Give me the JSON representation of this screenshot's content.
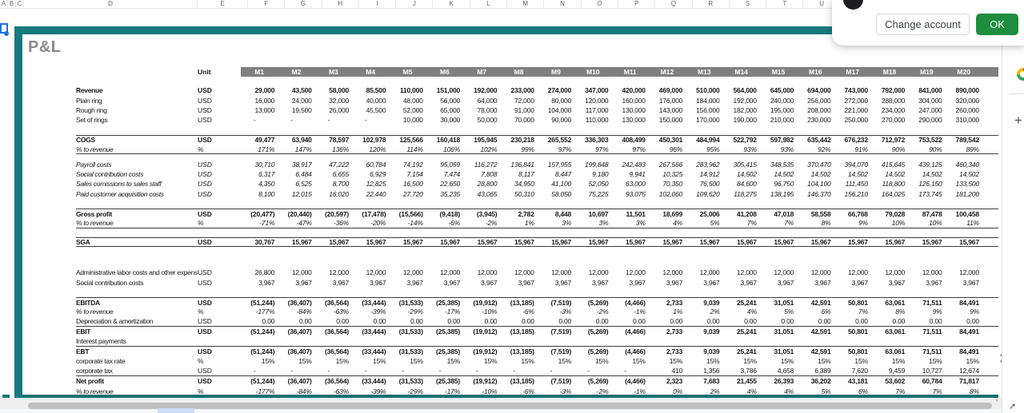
{
  "sheet": {
    "column_letters": [
      "A",
      "B",
      "C",
      "D",
      "E",
      "F",
      "G",
      "H",
      "I",
      "J",
      "K",
      "L",
      "M",
      "N",
      "O",
      "P",
      "Q",
      "R",
      "S",
      "T",
      "U"
    ]
  },
  "dialog": {
    "change_account_label": "Change account",
    "ok_label": "OK"
  },
  "card": {
    "title": "P&L",
    "unit_header": "Unit"
  },
  "colors": {
    "card_border_teal": "#17797d",
    "month_band_gray": "#7f7f7f",
    "ok_button_green": "#1e8e3e",
    "selection_blue": "#1a73e8",
    "sheet_tab_blue": "#cfddf6"
  },
  "table": {
    "months": [
      "M1",
      "M2",
      "M3",
      "M4",
      "M5",
      "M6",
      "M7",
      "M8",
      "M9",
      "M10",
      "M11",
      "M12",
      "M13",
      "M14",
      "M15",
      "M16",
      "M17",
      "M18",
      "M19",
      "M20"
    ],
    "rows": [
      {
        "label": "Revenue",
        "unit": "USD",
        "bold": true,
        "gap": 11,
        "values": [
          "29,000",
          "43,500",
          "58,000",
          "85,500",
          "110,000",
          "151,000",
          "192,000",
          "233,000",
          "274,000",
          "347,000",
          "420,000",
          "469,000",
          "510,000",
          "564,000",
          "645,000",
          "694,000",
          "743,000",
          "792,000",
          "841,000",
          "890,000"
        ]
      },
      {
        "label": "Plain ring",
        "unit": "USD",
        "values": [
          "16,000",
          "24,000",
          "32,000",
          "40,000",
          "48,000",
          "56,000",
          "64,000",
          "72,000",
          "80,000",
          "120,000",
          "160,000",
          "176,000",
          "184,000",
          "192,000",
          "240,000",
          "256,000",
          "272,000",
          "288,000",
          "304,000",
          "320,000"
        ]
      },
      {
        "label": "Rough ring",
        "unit": "USD",
        "values": [
          "13,000",
          "19,500",
          "26,000",
          "45,500",
          "52,000",
          "65,000",
          "78,000",
          "91,000",
          "104,000",
          "117,000",
          "130,000",
          "143,000",
          "156,000",
          "182,000",
          "195,000",
          "208,000",
          "221,000",
          "234,000",
          "247,000",
          "260,000"
        ]
      },
      {
        "label": "Set of rings",
        "unit": "USD",
        "values": [
          "-",
          "-",
          "-",
          "-",
          "10,000",
          "30,000",
          "50,000",
          "70,000",
          "90,000",
          "110,000",
          "130,000",
          "150,000",
          "170,000",
          "190,000",
          "210,000",
          "230,000",
          "250,000",
          "270,000",
          "290,000",
          "310,000"
        ]
      },
      {
        "label": "COGS",
        "unit": "USD",
        "bold": true,
        "bt": true,
        "gap": 12,
        "values": [
          "49,477",
          "63,940",
          "78,597",
          "102,978",
          "125,566",
          "160,418",
          "195,945",
          "230,218",
          "265,552",
          "336,303",
          "408,499",
          "450,301",
          "484,994",
          "522,792",
          "597,982",
          "635,442",
          "676,232",
          "712,972",
          "753,522",
          "789,542"
        ]
      },
      {
        "label": "% to revenue",
        "unit": "%",
        "italic": true,
        "bb": true,
        "values": [
          "171%",
          "147%",
          "136%",
          "120%",
          "114%",
          "106%",
          "102%",
          "99%",
          "97%",
          "97%",
          "97%",
          "96%",
          "95%",
          "93%",
          "93%",
          "92%",
          "91%",
          "90%",
          "90%",
          "89%"
        ]
      },
      {
        "label": "Payroll costs",
        "unit": "USD",
        "italic": true,
        "gap": 6,
        "values": [
          "30,710",
          "38,917",
          "47,222",
          "60,784",
          "74,192",
          "95,059",
          "116,272",
          "136,841",
          "157,955",
          "199,848",
          "242,483",
          "267,566",
          "283,962",
          "305,415",
          "348,535",
          "370,470",
          "394,070",
          "415,645",
          "439,125",
          "460,340"
        ]
      },
      {
        "label": "Social contribution costs",
        "unit": "USD",
        "italic": true,
        "values": [
          "6,317",
          "6,484",
          "6,655",
          "6,929",
          "7,154",
          "7,474",
          "7,808",
          "8,117",
          "8,447",
          "9,180",
          "9,941",
          "10,325",
          "14,912",
          "14,502",
          "14,502",
          "14,502",
          "14,502",
          "14,502",
          "14,502",
          "14,502"
        ]
      },
      {
        "label": "Sales comissions to sales staff",
        "unit": "USD",
        "italic": true,
        "values": [
          "4,350",
          "6,525",
          "8,700",
          "12,825",
          "16,500",
          "22,650",
          "28,800",
          "34,950",
          "41,100",
          "52,050",
          "63,000",
          "70,350",
          "76,500",
          "84,600",
          "96,750",
          "104,100",
          "111,450",
          "118,800",
          "126,150",
          "133,500"
        ]
      },
      {
        "label": "Paid customer acquisition costs",
        "unit": "USD",
        "italic": true,
        "values": [
          "8,100",
          "12,015",
          "16,020",
          "22,440",
          "27,720",
          "35,235",
          "43,065",
          "50,310",
          "58,050",
          "75,225",
          "93,075",
          "102,060",
          "109,620",
          "118,275",
          "138,195",
          "146,370",
          "156,210",
          "164,025",
          "173,745",
          "181,200"
        ]
      },
      {
        "label": "Gross profit",
        "unit": "USD",
        "bold": true,
        "bt": true,
        "gap": 12,
        "values": [
          "(20,477)",
          "(20,440)",
          "(20,597)",
          "(17,478)",
          "(15,566)",
          "(9,418)",
          "(3,945)",
          "2,782",
          "8,448",
          "10,697",
          "11,501",
          "18,699",
          "25,006",
          "41,208",
          "47,018",
          "58,558",
          "66,768",
          "79,028",
          "87,478",
          "100,458"
        ]
      },
      {
        "label": "% to revenue",
        "unit": "%",
        "italic": true,
        "bb": true,
        "values": [
          "-71%",
          "-47%",
          "-36%",
          "-20%",
          "-14%",
          "-6%",
          "-2%",
          "1%",
          "3%",
          "3%",
          "3%",
          "4%",
          "5%",
          "7%",
          "7%",
          "8%",
          "9%",
          "10%",
          "10%",
          "11%"
        ]
      },
      {
        "label": "SGA",
        "unit": "USD",
        "bold": true,
        "bt": true,
        "bb": true,
        "gap": 11,
        "values": [
          "30,767",
          "15,967",
          "15,967",
          "15,967",
          "15,967",
          "15,967",
          "15,967",
          "15,967",
          "15,967",
          "15,967",
          "15,967",
          "15,967",
          "15,967",
          "15,967",
          "15,967",
          "15,967",
          "15,967",
          "15,967",
          "15,967",
          "15,967"
        ]
      },
      {
        "label": "Administrative labor costs and other expenses",
        "unit": "USD",
        "gap": 26,
        "values": [
          "26,800",
          "12,000",
          "12,000",
          "12,000",
          "12,000",
          "12,000",
          "12,000",
          "12,000",
          "12,000",
          "12,000",
          "12,000",
          "12,000",
          "12,000",
          "12,000",
          "12,000",
          "12,000",
          "12,000",
          "12,000",
          "12,000",
          "12,000"
        ]
      },
      {
        "label": "Social contribution costs",
        "unit": "USD",
        "values": [
          "3,967",
          "3,967",
          "3,967",
          "3,967",
          "3,967",
          "3,967",
          "3,967",
          "3,967",
          "3,967",
          "3,967",
          "3,967",
          "3,967",
          "3,967",
          "3,967",
          "3,967",
          "3,967",
          "3,967",
          "3,967",
          "3,967",
          "3,967"
        ]
      },
      {
        "label": "EBITDA",
        "unit": "USD",
        "bold": true,
        "bt": true,
        "gap": 12,
        "values": [
          "(51,244)",
          "(36,407)",
          "(36,564)",
          "(33,444)",
          "(31,533)",
          "(25,385)",
          "(19,912)",
          "(13,185)",
          "(7,519)",
          "(5,269)",
          "(4,466)",
          "2,733",
          "9,039",
          "25,241",
          "31,051",
          "42,591",
          "50,801",
          "63,061",
          "71,511",
          "84,491"
        ]
      },
      {
        "label": "% to revenue",
        "unit": "%",
        "italic": true,
        "values": [
          "-177%",
          "-84%",
          "-63%",
          "-39%",
          "-29%",
          "-17%",
          "-10%",
          "-6%",
          "-3%",
          "-2%",
          "-1%",
          "1%",
          "2%",
          "4%",
          "5%",
          "6%",
          "7%",
          "8%",
          "9%",
          "9%"
        ]
      },
      {
        "label": "Depreciation & amortization",
        "unit": "USD",
        "bb": true,
        "values": [
          "0.00",
          "0.00",
          "0.00",
          "0.00",
          "0.00",
          "0.00",
          "0.00",
          "0.00",
          "0.00",
          "0.00",
          "0.00",
          "0.00",
          "0.00",
          "0.00",
          "0.00",
          "0.00",
          "0.00",
          "0.00",
          "0.00",
          "0.00"
        ]
      },
      {
        "label": "EBIT",
        "unit": "USD",
        "bold": true,
        "values": [
          "(51,244)",
          "(36,407)",
          "(36,564)",
          "(33,444)",
          "(31,533)",
          "(25,385)",
          "(19,912)",
          "(13,185)",
          "(7,519)",
          "(5,269)",
          "(4,466)",
          "2,733",
          "9,039",
          "25,241",
          "31,051",
          "42,591",
          "50,801",
          "63,061",
          "71,511",
          "84,491"
        ]
      },
      {
        "label": "Interest payments",
        "unit": "",
        "bb": true,
        "values": [
          "",
          "",
          "",
          "",
          "",
          "",
          "",
          "",
          "",
          "",
          "",
          "",
          "",
          "",
          "",
          "",
          "",
          "",
          "",
          ""
        ]
      },
      {
        "label": "EBT",
        "unit": "USD",
        "bold": true,
        "values": [
          "(51,244)",
          "(36,407)",
          "(36,564)",
          "(33,444)",
          "(31,533)",
          "(25,385)",
          "(19,912)",
          "(13,185)",
          "(7,519)",
          "(5,269)",
          "(4,466)",
          "2,733",
          "9,039",
          "25,241",
          "31,051",
          "42,591",
          "50,801",
          "63,061",
          "71,511",
          "84,491"
        ]
      },
      {
        "label": "corporate tax rate",
        "unit": "%",
        "values": [
          "15%",
          "15%",
          "15%",
          "15%",
          "15%",
          "15%",
          "15%",
          "15%",
          "15%",
          "15%",
          "15%",
          "15%",
          "15%",
          "15%",
          "15%",
          "15%",
          "15%",
          "15%",
          "15%",
          "15%"
        ]
      },
      {
        "label": "corporate tax",
        "unit": "USD",
        "bb": true,
        "values": [
          "-",
          "-",
          "-",
          "-",
          "-",
          "-",
          "-",
          "-",
          "-",
          "-",
          "-",
          "410",
          "1,356",
          "3,786",
          "4,658",
          "6,389",
          "7,620",
          "9,459",
          "10,727",
          "12,674"
        ]
      },
      {
        "label": "Net profit",
        "unit": "USD",
        "bold": true,
        "values": [
          "(51,244)",
          "(36,407)",
          "(36,564)",
          "(33,444)",
          "(31,533)",
          "(25,385)",
          "(19,912)",
          "(13,185)",
          "(7,519)",
          "(5,269)",
          "(4,466)",
          "2,323",
          "7,683",
          "21,455",
          "26,393",
          "36,202",
          "43,181",
          "53,602",
          "60,784",
          "71,817"
        ]
      },
      {
        "label": "% to revenue",
        "unit": "%",
        "italic": true,
        "values": [
          "-177%",
          "-84%",
          "-63%",
          "-39%",
          "-29%",
          "-17%",
          "-10%",
          "-6%",
          "-3%",
          "-2%",
          "-1%",
          "0%",
          "2%",
          "4%",
          "4%",
          "5%",
          "6%",
          "7%",
          "7%",
          "8%"
        ]
      }
    ]
  }
}
